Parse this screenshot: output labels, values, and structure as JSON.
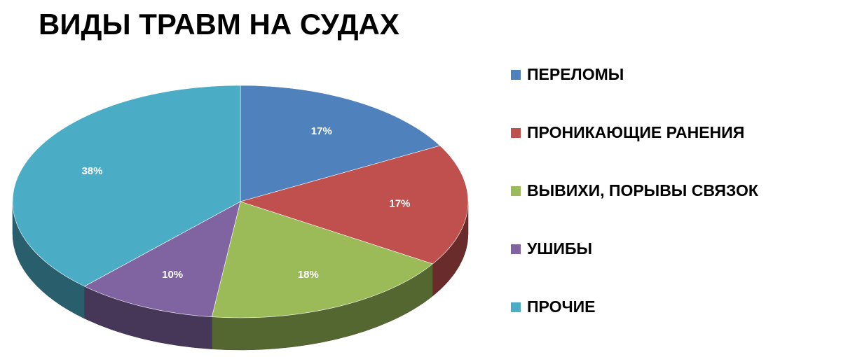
{
  "chart_data": {
    "type": "pie",
    "title": "ВИДЫ ТРАВМ НА СУДАХ",
    "categories": [
      "ПЕРЕЛОМЫ",
      "ПРОНИКАЮЩИЕ РАНЕНИЯ",
      "ВЫВИХИ, ПОРЫВЫ СВЯЗОК",
      "УШИБЫ",
      "ПРОЧИЕ"
    ],
    "values": [
      17,
      17,
      18,
      10,
      38
    ],
    "value_labels": [
      "17%",
      "17%",
      "18%",
      "10%",
      "38%"
    ],
    "colors": [
      "#4f81bd",
      "#c0504d",
      "#9bbb59",
      "#8064a2",
      "#4bacc6"
    ],
    "legend": "right"
  }
}
